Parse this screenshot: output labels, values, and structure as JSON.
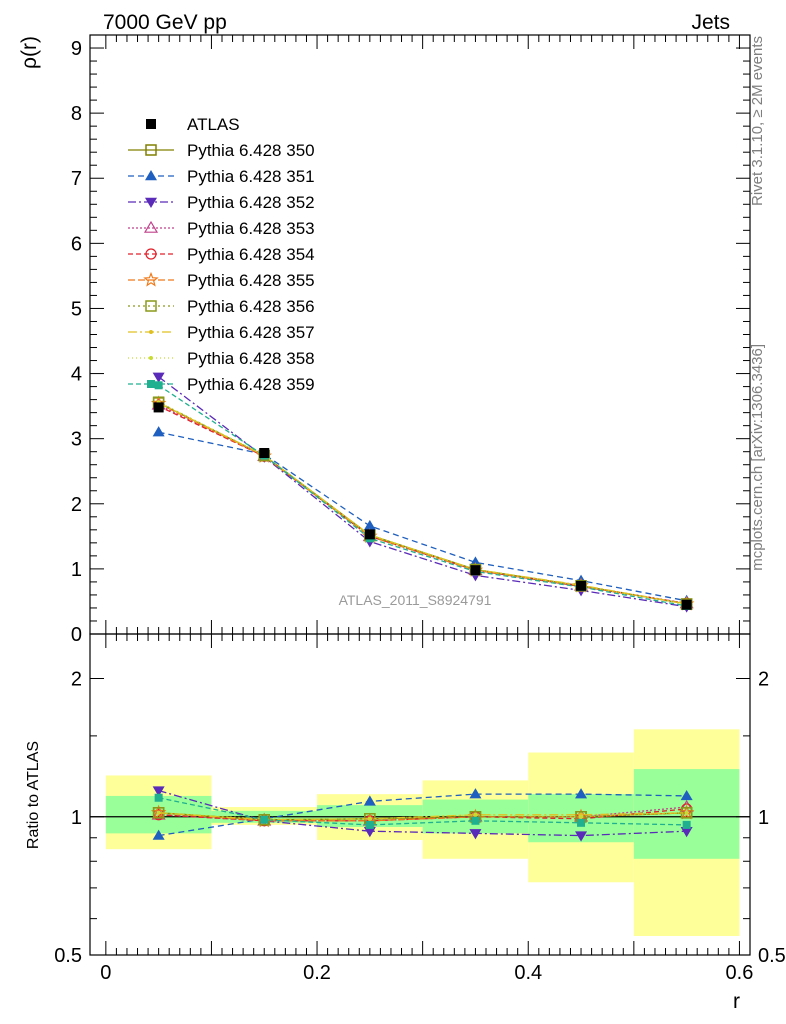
{
  "header": {
    "left": "7000 GeV pp",
    "right": "Jets"
  },
  "side_text": {
    "rivet": "Rivet 3.1.10, ≥ 2M events",
    "mcplots": "mcplots.cern.ch [arXiv:1306.3436]"
  },
  "watermark": "ATLAS_2011_S8924791",
  "chart_data": [
    {
      "type": "line",
      "panel": "main",
      "ylabel": "ρ(r)",
      "xlim": [
        -0.015,
        0.61
      ],
      "ylim": [
        0,
        9.2
      ],
      "y_ticks": [
        0,
        1,
        2,
        3,
        4,
        5,
        6,
        7,
        8,
        9
      ],
      "x": [
        0.05,
        0.15,
        0.25,
        0.35,
        0.45,
        0.55
      ],
      "reference": {
        "name": "ATLAS",
        "values": [
          3.48,
          2.78,
          1.53,
          0.98,
          0.74,
          0.45
        ]
      },
      "series": [
        {
          "name": "Pythia 6.428 350",
          "color": "#808000",
          "marker": "open-square",
          "dash": "",
          "values": [
            3.55,
            2.74,
            1.52,
            0.99,
            0.74,
            0.46
          ]
        },
        {
          "name": "Pythia 6.428 351",
          "color": "#1f5fbf",
          "marker": "filled-triangle-up",
          "dash": "6,4",
          "values": [
            3.1,
            2.76,
            1.66,
            1.1,
            0.82,
            0.51
          ]
        },
        {
          "name": "Pythia 6.428 352",
          "color": "#5a2ab8",
          "marker": "filled-triangle-down",
          "dash": "8,3,2,3",
          "values": [
            3.95,
            2.72,
            1.42,
            0.9,
            0.67,
            0.42
          ]
        },
        {
          "name": "Pythia 6.428 353",
          "color": "#c1418c",
          "marker": "open-triangle-up",
          "dash": "2,2",
          "values": [
            3.52,
            2.73,
            1.5,
            0.98,
            0.74,
            0.47
          ]
        },
        {
          "name": "Pythia 6.428 354",
          "color": "#e0202a",
          "marker": "open-circle",
          "dash": "5,3",
          "values": [
            3.5,
            2.73,
            1.5,
            0.98,
            0.73,
            0.47
          ]
        },
        {
          "name": "Pythia 6.428 355",
          "color": "#f07a1a",
          "marker": "open-star",
          "dash": "7,3",
          "values": [
            3.54,
            2.73,
            1.5,
            0.98,
            0.74,
            0.46
          ]
        },
        {
          "name": "Pythia 6.428 356",
          "color": "#8a9a1a",
          "marker": "open-square",
          "dash": "2,3",
          "values": [
            3.56,
            2.74,
            1.51,
            0.99,
            0.74,
            0.46
          ]
        },
        {
          "name": "Pythia 6.428 357",
          "color": "#e0c020",
          "marker": "small-dot",
          "dash": "9,3,2,3",
          "values": [
            3.55,
            2.74,
            1.52,
            0.99,
            0.75,
            0.46
          ]
        },
        {
          "name": "Pythia 6.428 358",
          "color": "#c8dc30",
          "marker": "small-dot",
          "dash": "1,3",
          "values": [
            3.56,
            2.75,
            1.52,
            0.99,
            0.74,
            0.46
          ]
        },
        {
          "name": "Pythia 6.428 359",
          "color": "#20b090",
          "marker": "filled-square",
          "dash": "5,3",
          "values": [
            3.82,
            2.74,
            1.47,
            0.96,
            0.72,
            0.43
          ]
        }
      ]
    },
    {
      "type": "line",
      "panel": "ratio",
      "xlabel": "r",
      "ylabel": "Ratio to ATLAS",
      "xlim": [
        -0.015,
        0.61
      ],
      "ylim": [
        0.5,
        2.5
      ],
      "y_scale": "log",
      "x_ticks": [
        0,
        0.2,
        0.4,
        0.6
      ],
      "x_tick_labels": [
        "0",
        "0.2",
        "0.4",
        "0.6"
      ],
      "y_tick_labels": [
        "0.5",
        "1",
        "2"
      ],
      "y_ticks": [
        0.5,
        1,
        2
      ],
      "bins": [
        [
          0,
          0.1
        ],
        [
          0.1,
          0.2
        ],
        [
          0.2,
          0.3
        ],
        [
          0.3,
          0.4
        ],
        [
          0.4,
          0.5
        ],
        [
          0.5,
          0.6
        ]
      ],
      "band_stat": [
        [
          0.92,
          1.11
        ],
        [
          0.97,
          1.03
        ],
        [
          0.95,
          1.06
        ],
        [
          0.92,
          1.09
        ],
        [
          0.88,
          1.12
        ],
        [
          0.81,
          1.27
        ]
      ],
      "band_total": [
        [
          0.85,
          1.23
        ],
        [
          0.96,
          1.05
        ],
        [
          0.89,
          1.12
        ],
        [
          0.81,
          1.2
        ],
        [
          0.72,
          1.38
        ],
        [
          0.55,
          1.55
        ]
      ],
      "x": [
        0.05,
        0.15,
        0.25,
        0.35,
        0.45,
        0.55
      ],
      "series": [
        {
          "name": "Pythia 6.428 350",
          "color": "#808000",
          "marker": "open-square",
          "dash": "",
          "values": [
            1.02,
            0.985,
            0.99,
            1.0,
            1.0,
            1.02
          ]
        },
        {
          "name": "Pythia 6.428 351",
          "color": "#1f5fbf",
          "marker": "filled-triangle-up",
          "dash": "6,4",
          "values": [
            0.91,
            0.99,
            1.08,
            1.12,
            1.12,
            1.11
          ]
        },
        {
          "name": "Pythia 6.428 352",
          "color": "#5a2ab8",
          "marker": "filled-triangle-down",
          "dash": "8,3,2,3",
          "values": [
            1.14,
            0.98,
            0.93,
            0.92,
            0.91,
            0.93
          ]
        },
        {
          "name": "Pythia 6.428 353",
          "color": "#c1418c",
          "marker": "open-triangle-up",
          "dash": "2,2",
          "values": [
            1.01,
            0.98,
            0.98,
            1.0,
            1.0,
            1.05
          ]
        },
        {
          "name": "Pythia 6.428 354",
          "color": "#e0202a",
          "marker": "open-circle",
          "dash": "5,3",
          "values": [
            1.01,
            0.98,
            0.98,
            1.0,
            0.99,
            1.04
          ]
        },
        {
          "name": "Pythia 6.428 355",
          "color": "#f07a1a",
          "marker": "open-star",
          "dash": "7,3",
          "values": [
            1.02,
            0.98,
            0.98,
            1.0,
            1.0,
            1.02
          ]
        },
        {
          "name": "Pythia 6.428 356",
          "color": "#8a9a1a",
          "marker": "open-square",
          "dash": "2,3",
          "values": [
            1.02,
            0.985,
            0.99,
            1.0,
            1.0,
            1.02
          ]
        },
        {
          "name": "Pythia 6.428 357",
          "color": "#e0c020",
          "marker": "small-dot",
          "dash": "9,3,2,3",
          "values": [
            1.02,
            0.985,
            0.99,
            1.01,
            1.01,
            1.02
          ]
        },
        {
          "name": "Pythia 6.428 358",
          "color": "#c8dc30",
          "marker": "small-dot",
          "dash": "1,3",
          "values": [
            1.02,
            0.99,
            0.99,
            1.01,
            1.0,
            1.02
          ]
        },
        {
          "name": "Pythia 6.428 359",
          "color": "#20b090",
          "marker": "filled-square",
          "dash": "5,3",
          "values": [
            1.1,
            0.985,
            0.96,
            0.98,
            0.97,
            0.96
          ]
        }
      ]
    }
  ]
}
